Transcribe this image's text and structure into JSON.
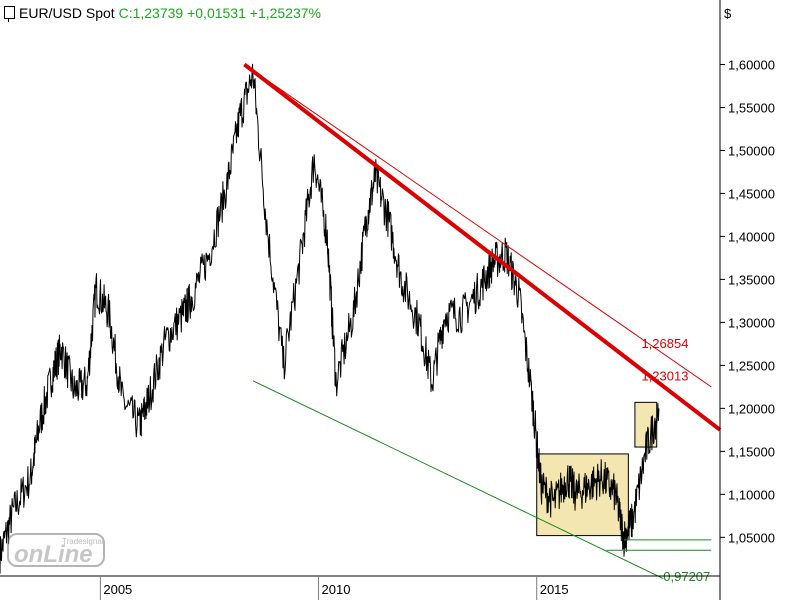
{
  "header": {
    "symbol": "EUR/USD Spot",
    "quote": "C:1,23739 +0,01531 +1,25237%"
  },
  "colors": {
    "price": "#000000",
    "resistance": "#dd0000",
    "support": "#1c8a1c",
    "range_fill": "#f3e6b0",
    "up_text": "#1aaa1a",
    "grid": "#7a7a7a"
  },
  "chart_data": {
    "type": "line",
    "title": "EUR/USD Spot",
    "ylabel": "$",
    "ylim": [
      1.005,
      1.675
    ],
    "xlim": [
      2002.7,
      2019.2
    ],
    "y_tick_values": [
      1.05,
      1.1,
      1.15,
      1.2,
      1.25,
      1.3,
      1.35,
      1.4,
      1.45,
      1.5,
      1.55,
      1.6
    ],
    "y_tick_labels": [
      "1,05000",
      "1,10000",
      "1,15000",
      "1,20000",
      "1,25000",
      "1,30000",
      "1,35000",
      "1,40000",
      "1,45000",
      "1,50000",
      "1,55000",
      "1,60000"
    ],
    "x_ticks": [
      {
        "value": 2005,
        "label": "2005"
      },
      {
        "value": 2010,
        "label": "2010"
      },
      {
        "value": 2015,
        "label": "2015"
      }
    ],
    "series": [
      {
        "x": [
          2002.7,
          2003.0,
          2003.4,
          2003.6,
          2003.9,
          2004.1,
          2004.4,
          2004.7,
          2004.9,
          2005.2,
          2005.5,
          2005.9,
          2006.1,
          2006.5,
          2006.9,
          2007.1,
          2007.5,
          2007.9,
          2008.2,
          2008.5,
          2008.8,
          2009.2,
          2009.6,
          2009.9,
          2010.2,
          2010.4,
          2010.8,
          2011.1,
          2011.3,
          2011.6,
          2011.9,
          2012.3,
          2012.6,
          2012.9,
          2013.3,
          2013.7,
          2014.0,
          2014.3,
          2014.6,
          2014.9,
          2015.1,
          2015.4,
          2015.7,
          2015.9,
          2016.2,
          2016.5,
          2016.8,
          2017.0,
          2017.2,
          2017.5,
          2017.8
        ],
        "y": [
          1.03,
          1.08,
          1.12,
          1.18,
          1.24,
          1.27,
          1.22,
          1.23,
          1.34,
          1.31,
          1.21,
          1.18,
          1.21,
          1.28,
          1.31,
          1.33,
          1.38,
          1.46,
          1.54,
          1.59,
          1.42,
          1.25,
          1.38,
          1.49,
          1.4,
          1.23,
          1.31,
          1.42,
          1.47,
          1.42,
          1.35,
          1.3,
          1.23,
          1.31,
          1.31,
          1.34,
          1.37,
          1.38,
          1.33,
          1.21,
          1.11,
          1.09,
          1.12,
          1.1,
          1.11,
          1.12,
          1.1,
          1.05,
          1.07,
          1.15,
          1.2
        ]
      }
    ],
    "resistance_line": {
      "x": [
        2008.3,
        2019.2
      ],
      "y": [
        1.6,
        1.175
      ]
    },
    "resistance_line_thin": {
      "x": [
        2008.3,
        2019.0
      ],
      "y": [
        1.6,
        1.225
      ]
    },
    "support_line": {
      "x": [
        2008.5,
        2017.9
      ],
      "y": [
        1.232,
        1.002
      ]
    },
    "support_level_1": {
      "x": [
        2017.0,
        2019.0
      ],
      "y": 1.047
    },
    "support_level_2": {
      "x": [
        2016.6,
        2019.0
      ],
      "y": 1.035
    },
    "range_box": {
      "x": [
        2015.0,
        2017.1
      ],
      "y": [
        1.052,
        1.147
      ]
    },
    "breakout_box": {
      "x": [
        2017.25,
        2017.75
      ],
      "y": [
        1.155,
        1.207
      ]
    },
    "annotations": [
      {
        "text": "1,26854",
        "x": 2017.4,
        "y": 1.268,
        "color": "#dd0000"
      },
      {
        "text": "1,23013",
        "x": 2017.4,
        "y": 1.23,
        "color": "#dd0000"
      },
      {
        "text": "0,97207",
        "x": 2017.9,
        "y": 0.997,
        "color": "#1c8a1c"
      }
    ],
    "grid": false
  },
  "watermark": {
    "text": "onLine",
    "sub": "Tradesignal"
  }
}
